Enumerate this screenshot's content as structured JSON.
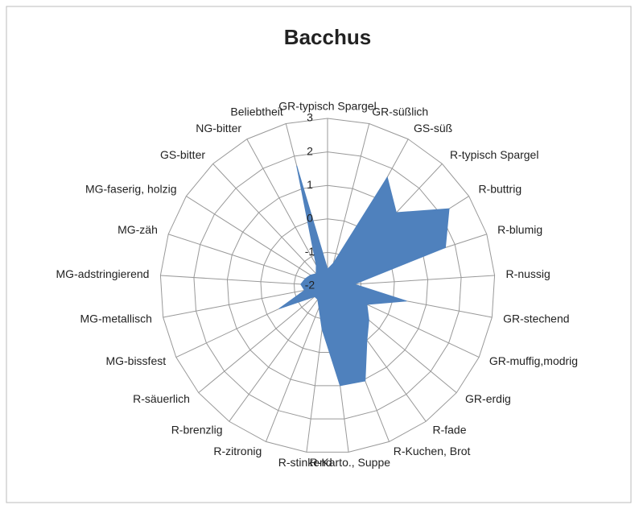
{
  "chart_data": {
    "type": "radar",
    "title": "Bacchus",
    "categories": [
      "GR-typisch Spargel",
      "GR-süßlich",
      "GS-süß",
      "R-typisch Spargel",
      "R-buttrig",
      "R-blumig",
      "R-nussig",
      "GR-stechend",
      "GR-muffig,modrig",
      "GR-erdig",
      "R-fade",
      "R-Kuchen, Brot",
      "R-Karto., Suppe",
      "R-stinkend",
      "R-zitronig",
      "R-brenzlig",
      "R-säuerlich",
      "MG-bissfest",
      "MG-metallisch",
      "MG-adstringierend",
      "MG-zäh",
      "MG-faserig, holzig",
      "GS-bitter",
      "NG-bitter",
      "Beliebtheit"
    ],
    "values": [
      -1.5,
      -1.3,
      1.7,
      1.0,
      2.3,
      1.7,
      -1.2,
      0.4,
      -0.7,
      -0.4,
      0.0,
      1.05,
      1.0,
      -0.7,
      -1.3,
      -1.5,
      -1.5,
      -0.4,
      -1.3,
      -1.2,
      -1.3,
      -1.4,
      -1.5,
      -1.3,
      1.7
    ],
    "color": "#4f81bd",
    "ylim": [
      -2,
      3
    ],
    "yticks": [
      -2,
      -1,
      0,
      1,
      2,
      3
    ],
    "grid": true
  }
}
